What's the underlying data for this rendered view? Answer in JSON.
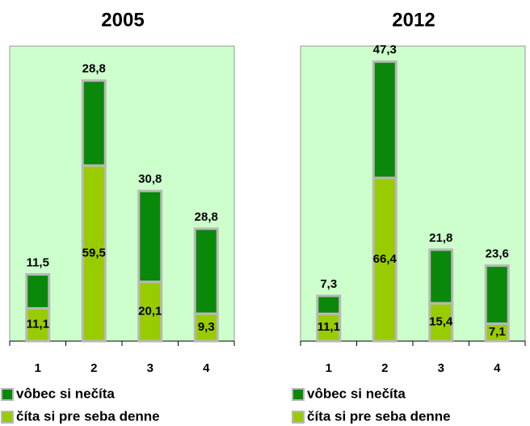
{
  "chart_data": [
    {
      "type": "stacked-bar",
      "title": "2005",
      "categories": [
        "1",
        "2",
        "3",
        "4"
      ],
      "series": [
        {
          "name": "vôbec si nečíta",
          "color": "#0a880a",
          "values": [
            11.5,
            28.8,
            30.8,
            28.8
          ],
          "value_labels": [
            "11,5",
            "28,8",
            "30,8",
            "28,8"
          ]
        },
        {
          "name": "číta si pre seba denne",
          "color": "#99cc00",
          "values": [
            11.1,
            59.5,
            20.1,
            9.3
          ],
          "value_labels": [
            "11,1",
            "59,5",
            "20,1",
            "9,3"
          ]
        }
      ],
      "ylim": [
        0,
        100
      ],
      "background": "#ccffcc"
    },
    {
      "type": "stacked-bar",
      "title": "2012",
      "categories": [
        "1",
        "2",
        "3",
        "4"
      ],
      "series": [
        {
          "name": "vôbec si nečíta",
          "color": "#0a880a",
          "values": [
            7.3,
            47.3,
            21.8,
            23.6
          ],
          "value_labels": [
            "7,3",
            "47,3",
            "21,8",
            "23,6"
          ]
        },
        {
          "name": "číta si pre seba denne",
          "color": "#99cc00",
          "values": [
            11.1,
            66.4,
            15.4,
            7.1
          ],
          "value_labels": [
            "11,1",
            "66,4",
            "15,4",
            "7,1"
          ]
        }
      ],
      "ylim": [
        0,
        120
      ],
      "background": "#ccffcc"
    }
  ]
}
